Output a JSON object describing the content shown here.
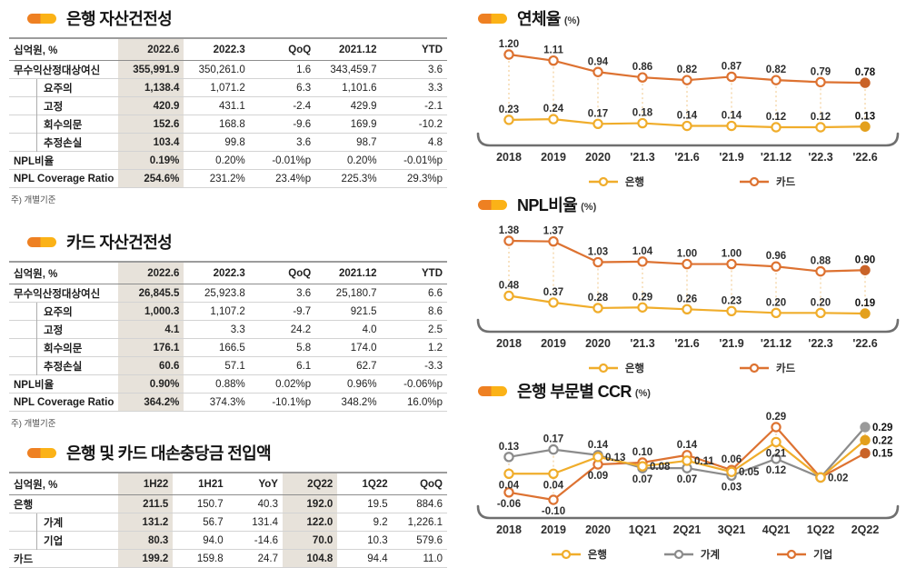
{
  "colors": {
    "yellow": "#f0ad2b",
    "orange": "#dd7231",
    "gray": "#8b8b8b",
    "yellow_fill": "#e3a01d",
    "orange_fill": "#c96328",
    "gray_fill": "#9a9a9a",
    "dash": "#f2cf9a",
    "axis": "#6f6f6f",
    "highlight_bg": "#e7e2da",
    "bullet_orange": "#ee8022",
    "bullet_yellow": "#fbb217"
  },
  "tables": [
    {
      "title": "은행 자산건전성",
      "unit_header": "십억원, %",
      "columns": [
        "2022.6",
        "2022.3",
        "QoQ",
        "2021.12",
        "YTD"
      ],
      "highlight_cols": [
        0
      ],
      "rows": [
        {
          "label": "무수익산정대상여신",
          "indent": false,
          "values": [
            "355,991.9",
            "350,261.0",
            "1.6",
            "343,459.7",
            "3.6"
          ]
        },
        {
          "label": "요주의",
          "indent": true,
          "values": [
            "1,138.4",
            "1,071.2",
            "6.3",
            "1,101.6",
            "3.3"
          ]
        },
        {
          "label": "고정",
          "indent": true,
          "values": [
            "420.9",
            "431.1",
            "-2.4",
            "429.9",
            "-2.1"
          ]
        },
        {
          "label": "회수의문",
          "indent": true,
          "values": [
            "152.6",
            "168.8",
            "-9.6",
            "169.9",
            "-10.2"
          ]
        },
        {
          "label": "추정손실",
          "indent": true,
          "values": [
            "103.4",
            "99.8",
            "3.6",
            "98.7",
            "4.8"
          ]
        },
        {
          "label": "NPL비율",
          "indent": false,
          "values": [
            "0.19%",
            "0.20%",
            "-0.01%p",
            "0.20%",
            "-0.01%p"
          ]
        },
        {
          "label": "NPL Coverage Ratio",
          "indent": false,
          "values": [
            "254.6%",
            "231.2%",
            "23.4%p",
            "225.3%",
            "29.3%p"
          ]
        }
      ],
      "note": "주) 개별기준"
    },
    {
      "title": "카드 자산건전성",
      "unit_header": "십억원, %",
      "columns": [
        "2022.6",
        "2022.3",
        "QoQ",
        "2021.12",
        "YTD"
      ],
      "highlight_cols": [
        0
      ],
      "rows": [
        {
          "label": "무수익산정대상여신",
          "indent": false,
          "values": [
            "26,845.5",
            "25,923.8",
            "3.6",
            "25,180.7",
            "6.6"
          ]
        },
        {
          "label": "요주의",
          "indent": true,
          "values": [
            "1,000.3",
            "1,107.2",
            "-9.7",
            "921.5",
            "8.6"
          ]
        },
        {
          "label": "고정",
          "indent": true,
          "values": [
            "4.1",
            "3.3",
            "24.2",
            "4.0",
            "2.5"
          ]
        },
        {
          "label": "회수의문",
          "indent": true,
          "values": [
            "176.1",
            "166.5",
            "5.8",
            "174.0",
            "1.2"
          ]
        },
        {
          "label": "추정손실",
          "indent": true,
          "values": [
            "60.6",
            "57.1",
            "6.1",
            "62.7",
            "-3.3"
          ]
        },
        {
          "label": "NPL비율",
          "indent": false,
          "values": [
            "0.90%",
            "0.88%",
            "0.02%p",
            "0.96%",
            "-0.06%p"
          ]
        },
        {
          "label": "NPL Coverage Ratio",
          "indent": false,
          "values": [
            "364.2%",
            "374.3%",
            "-10.1%p",
            "348.2%",
            "16.0%p"
          ]
        }
      ],
      "note": "주) 개별기준"
    },
    {
      "title": "은행 및 카드 대손충당금 전입액",
      "unit_header": "십억원, %",
      "columns": [
        "1H22",
        "1H21",
        "YoY",
        "2Q22",
        "1Q22",
        "QoQ"
      ],
      "highlight_cols": [
        0,
        3
      ],
      "rows": [
        {
          "label": "은행",
          "indent": false,
          "values": [
            "211.5",
            "150.7",
            "40.3",
            "192.0",
            "19.5",
            "884.6"
          ]
        },
        {
          "label": "가계",
          "indent": true,
          "values": [
            "131.2",
            "56.7",
            "131.4",
            "122.0",
            "9.2",
            "1,226.1"
          ]
        },
        {
          "label": "기업",
          "indent": true,
          "values": [
            "80.3",
            "94.0",
            "-14.6",
            "70.0",
            "10.3",
            "579.6"
          ]
        },
        {
          "label": "카드",
          "indent": false,
          "values": [
            "199.2",
            "159.8",
            "24.7",
            "104.8",
            "94.4",
            "11.0"
          ]
        }
      ]
    }
  ],
  "chart_data": [
    {
      "type": "line",
      "title": "연체율",
      "unit": "(%)",
      "categories": [
        "2018",
        "2019",
        "2020",
        "'21.3",
        "'21.6",
        "'21.9",
        "'21.12",
        "'22.3",
        "'22.6"
      ],
      "ylim": [
        0.12,
        1.2
      ],
      "legend_position": "bottom",
      "series": [
        {
          "name": "은행",
          "color": "yellow",
          "values": [
            0.23,
            0.24,
            0.17,
            0.18,
            0.14,
            0.14,
            0.12,
            0.12,
            0.13
          ]
        },
        {
          "name": "카드",
          "color": "orange",
          "values": [
            1.2,
            1.11,
            0.94,
            0.86,
            0.82,
            0.87,
            0.82,
            0.79,
            0.78
          ]
        }
      ]
    },
    {
      "type": "line",
      "title": "NPL비율",
      "unit": "(%)",
      "categories": [
        "2018",
        "2019",
        "2020",
        "'21.3",
        "'21.6",
        "'21.9",
        "'21.12",
        "'22.3",
        "'22.6"
      ],
      "ylim": [
        0.19,
        1.38
      ],
      "legend_position": "bottom",
      "series": [
        {
          "name": "은행",
          "color": "yellow",
          "values": [
            0.48,
            0.37,
            0.28,
            0.29,
            0.26,
            0.23,
            0.2,
            0.2,
            0.19
          ]
        },
        {
          "name": "카드",
          "color": "orange",
          "values": [
            1.38,
            1.37,
            1.03,
            1.04,
            1.0,
            1.0,
            0.96,
            0.88,
            0.9
          ]
        }
      ]
    },
    {
      "type": "line",
      "title": "은행 부문별 CCR",
      "unit": "(%)",
      "categories": [
        "2018",
        "2019",
        "2020",
        "1Q21",
        "2Q21",
        "3Q21",
        "4Q21",
        "1Q22",
        "2Q22"
      ],
      "ylim": [
        -0.1,
        0.29
      ],
      "legend_position": "bottom",
      "series": [
        {
          "name": "은행",
          "color": "yellow",
          "values": [
            0.04,
            0.04,
            0.13,
            0.08,
            0.11,
            0.05,
            0.21,
            0.02,
            0.22
          ],
          "label_pos": [
            "below",
            "below",
            "right",
            "right",
            "right",
            "right",
            "below",
            "right",
            "right"
          ]
        },
        {
          "name": "가계",
          "color": "gray",
          "values": [
            0.13,
            0.17,
            0.14,
            0.07,
            0.07,
            0.03,
            0.12,
            0.02,
            0.29
          ],
          "label_pos": [
            "above",
            "above",
            "above",
            "below",
            "below",
            "below",
            "below",
            "none",
            "right"
          ]
        },
        {
          "name": "기업",
          "color": "orange",
          "values": [
            -0.06,
            -0.1,
            0.09,
            0.1,
            0.14,
            0.06,
            0.29,
            0.02,
            0.15
          ],
          "label_pos": [
            "below",
            "below",
            "below",
            "above",
            "above",
            "above",
            "above",
            "none",
            "right"
          ]
        }
      ]
    }
  ]
}
